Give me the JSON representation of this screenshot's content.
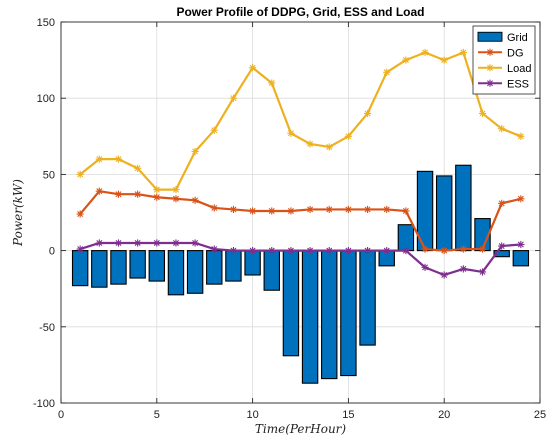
{
  "chart_data": {
    "type": "bar",
    "title": "Power Profile of DDPG, Grid, ESS and Load",
    "xlabel": "Time(PerHour)",
    "ylabel": "Power(kW)",
    "xlim": [
      0,
      25
    ],
    "ylim": [
      -100,
      150
    ],
    "xticks": [
      0,
      5,
      10,
      15,
      20,
      25
    ],
    "yticks": [
      -100,
      -50,
      0,
      50,
      100,
      150
    ],
    "grid": true,
    "legend_position": "top-right",
    "x": [
      1,
      2,
      3,
      4,
      5,
      6,
      7,
      8,
      9,
      10,
      11,
      12,
      13,
      14,
      15,
      16,
      17,
      18,
      19,
      20,
      21,
      22,
      23,
      24
    ],
    "series": [
      {
        "name": "Grid",
        "kind": "bar",
        "color": "#0072BD",
        "values": [
          -23,
          -24,
          -22,
          -18,
          -20,
          -29,
          -28,
          -22,
          -20,
          -16,
          -26,
          -69,
          -87,
          -84,
          -82,
          -62,
          -10,
          17,
          52,
          49,
          56,
          21,
          -4,
          -10
        ]
      },
      {
        "name": "DG",
        "kind": "line",
        "marker": "asterisk",
        "color": "#D95319",
        "values": [
          24,
          39,
          37,
          37,
          35,
          34,
          33,
          28,
          27,
          26,
          26,
          26,
          27,
          27,
          27,
          27,
          27,
          26,
          1,
          0,
          1,
          1,
          31,
          34
        ]
      },
      {
        "name": "Load",
        "kind": "line",
        "marker": "asterisk",
        "color": "#EDB120",
        "values": [
          50,
          60,
          60,
          54,
          40,
          40,
          65,
          79,
          100,
          120,
          110,
          77,
          70,
          68,
          75,
          90,
          117,
          125,
          130,
          125,
          130,
          90,
          80,
          75
        ]
      },
      {
        "name": "ESS",
        "kind": "line",
        "marker": "asterisk",
        "color": "#7E2F8E",
        "values": [
          1,
          5,
          5,
          5,
          5,
          5,
          5,
          1,
          0,
          0,
          0,
          0,
          0,
          0,
          0,
          0,
          0,
          0,
          -11,
          -16,
          -12,
          -14,
          3,
          4
        ]
      }
    ]
  }
}
